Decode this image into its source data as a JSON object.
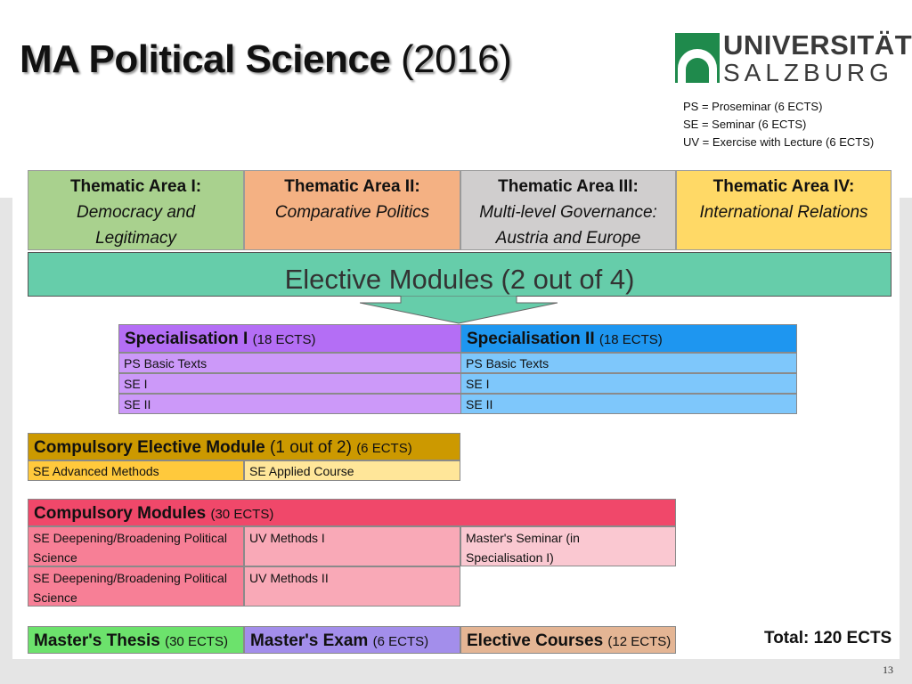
{
  "header": {
    "title_main": "MA Political Science",
    "title_year": "(2016)"
  },
  "logo": {
    "line1": "UNIVERSITÄT",
    "line2": "SALZBURG",
    "colors": {
      "green": "#1f8a4c",
      "text": "#3a3a3a"
    }
  },
  "legend": {
    "ps": "PS = Proseminar (6 ECTS)",
    "se": "SE = Seminar (6 ECTS)",
    "uv": "UV = Exercise with Lecture (6 ECTS)"
  },
  "areas": [
    {
      "heading": "Thematic Area I:",
      "subtitle": "Democracy and Legitimacy",
      "color": "#a9d18e"
    },
    {
      "heading": "Thematic Area II:",
      "subtitle": "Comparative Politics",
      "color": "#f4b183"
    },
    {
      "heading": "Thematic Area III:",
      "subtitle": "Multi-level Governance: Austria and Europe",
      "color": "#d0cece"
    },
    {
      "heading": "Thematic Area IV:",
      "subtitle": "International Relations",
      "color": "#ffd966"
    }
  ],
  "elective_modules": {
    "label": "Elective Modules (2 out of 4)",
    "color": "#66cdaa"
  },
  "specialisation": {
    "s1": {
      "title": "Specialisation I",
      "ects": "(18 ECTS)",
      "rows": [
        "PS Basic Texts",
        "SE I",
        "SE II"
      ],
      "header_color": "#b46ef5",
      "row_color": "#cc99f9"
    },
    "s2": {
      "title": "Specialisation II",
      "ects": "(18 ECTS)",
      "rows": [
        "PS Basic Texts",
        "SE I",
        "SE II"
      ],
      "header_color": "#1e96f0",
      "row_color": "#7ec7fb"
    }
  },
  "compulsory_elective": {
    "title": "Compulsory Elective Module",
    "choice": "(1 out of 2)",
    "ects": "(6 ECTS)",
    "options": [
      "SE Advanced Methods",
      "SE Applied Course"
    ],
    "colors": {
      "header": "#cc9900",
      "left": "#ffc93c",
      "right": "#ffe699"
    }
  },
  "compulsory_modules": {
    "title": "Compulsory Modules",
    "ects": "(30 ECTS)",
    "row1": [
      "SE Deepening/Broadening Political Science",
      "UV Methods I",
      "Master's Seminar (in Specialisation I)"
    ],
    "row2": [
      "SE Deepening/Broadening Political Science",
      "UV Methods II"
    ],
    "colors": {
      "header": "#f0486a",
      "col1": "#f77f96",
      "col2": "#f9a9b7",
      "col3": "#fac8d1"
    }
  },
  "bottom": [
    {
      "title": "Master's Thesis",
      "ects": "(30 ECTS)",
      "color": "#6ce26c"
    },
    {
      "title": "Master's Exam",
      "ects": "(6 ECTS)",
      "color": "#a38eeb"
    },
    {
      "title": "Elective Courses",
      "ects": "(12 ECTS)",
      "color": "#e4b594"
    }
  ],
  "total": "Total: 120 ECTS",
  "page_number": "13"
}
